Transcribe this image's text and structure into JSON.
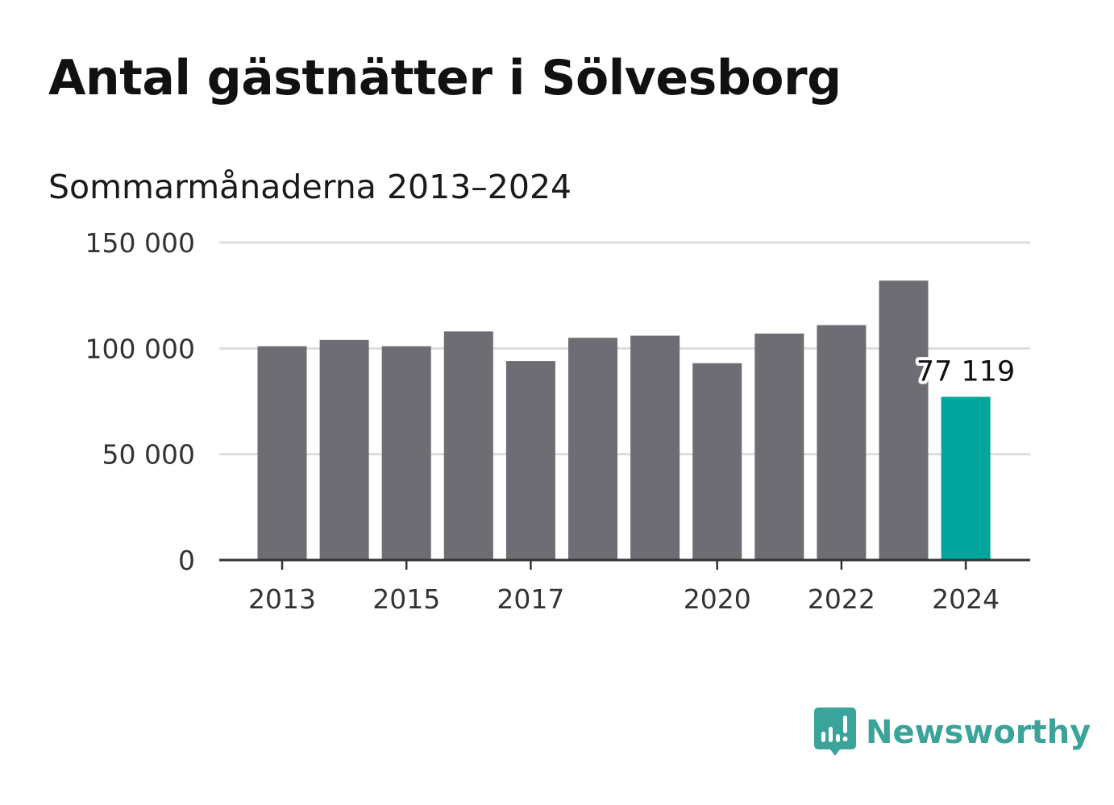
{
  "title": "Antal gästnätter i Sölvesborg",
  "subtitle": "Sommarmånaderna 2013–2024",
  "brand": {
    "name": "Newsworthy",
    "color": "#3aa39a",
    "icon": "newsworthy-logo-icon"
  },
  "colors": {
    "bar": "#6e6d73",
    "highlight": "#00a59b",
    "grid": "#dddddd",
    "axis": "#333333",
    "text": "#333333"
  },
  "chart_data": {
    "type": "bar",
    "categories": [
      "2013",
      "2014",
      "2015",
      "2016",
      "2017",
      "2018",
      "2019",
      "2020",
      "2021",
      "2022",
      "2023",
      "2024"
    ],
    "values": [
      101000,
      104000,
      101000,
      108000,
      94000,
      105000,
      106000,
      93000,
      107000,
      111000,
      132000,
      77119
    ],
    "highlight_index": 11,
    "data_label": {
      "index": 11,
      "text": "77 119"
    },
    "ylim": [
      0,
      150000
    ],
    "yticks": [
      0,
      50000,
      100000,
      150000
    ],
    "ytick_labels": [
      "0",
      "50 000",
      "100 000",
      "150 000"
    ],
    "xtick_labels": [
      "2013",
      "2015",
      "2017",
      "2020",
      "2022",
      "2024"
    ],
    "xlabel": "",
    "ylabel": "",
    "grid": true
  }
}
